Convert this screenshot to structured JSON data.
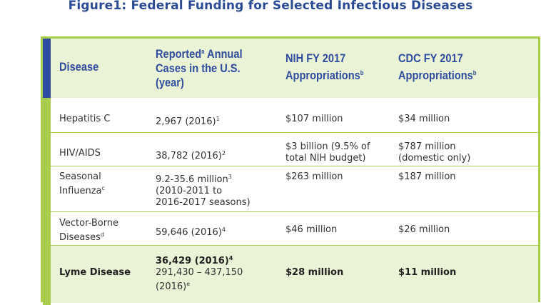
{
  "title": "Figure1: Federal Funding for Selected Infectious Diseases",
  "headers": {
    "disease": "Disease",
    "cases": "Reported",
    "cases_sup": "a",
    "cases_rest1": " Annual",
    "cases_rest2": "Cases in the U.S.",
    "cases_rest3": "(year)",
    "nih1": "NIH FY 2017",
    "nih2": "Appropriations",
    "nih_sup": "b",
    "cdc1": "CDC FY 2017",
    "cdc2": "Appropriations",
    "cdc_sup": "b"
  },
  "rows": [
    {
      "disease1": "Hepatitis C",
      "disease2": "",
      "disease_sup": "",
      "cases1": "2,967 (2016)",
      "cases_sup": "1",
      "cases2": "",
      "cases3": "",
      "nih1": "$107 million",
      "nih2": "",
      "cdc1": "$34 million",
      "cdc2": ""
    },
    {
      "disease1": "HIV/AIDS",
      "disease2": "",
      "disease_sup": "",
      "cases1": "38,782 (2016)",
      "cases_sup": "2",
      "cases2": "",
      "cases3": "",
      "nih1": "$3 billion (9.5% of",
      "nih2": "total NIH budget)",
      "cdc1": "$787 million",
      "cdc2": "(domestic only)"
    },
    {
      "disease1": "Seasonal",
      "disease2": "Influenza",
      "disease_sup": "c",
      "cases1": "9.2-35.6 million",
      "cases_sup": "3",
      "cases2": "(2010-2011 to",
      "cases3": "2016-2017 seasons)",
      "nih1": "$263 million",
      "nih2": "",
      "cdc1": "$187 million",
      "cdc2": ""
    },
    {
      "disease1": "Vector-Borne",
      "disease2": "Diseases",
      "disease_sup": "d",
      "cases1": "59,646 (2016)",
      "cases_sup": "4",
      "cases2": "",
      "cases3": "",
      "nih1": "$46 million",
      "nih2": "",
      "cdc1": "$26 million",
      "cdc2": ""
    },
    {
      "disease1": "Lyme Disease",
      "disease2": "",
      "disease_sup": "",
      "cases1": "36,429 (2016)",
      "cases_sup": "4",
      "cases2": "291,430 – 437,150",
      "cases3": "(2016)",
      "cases3_sup": "e",
      "nih1": "$28 million",
      "nih2": "",
      "cdc1": "$11 million",
      "cdc2": ""
    }
  ],
  "colors": {
    "accent_blue": "#2f4d9e",
    "accent_green": "#a8cc4c",
    "header_bg": "#ebf3d6"
  }
}
